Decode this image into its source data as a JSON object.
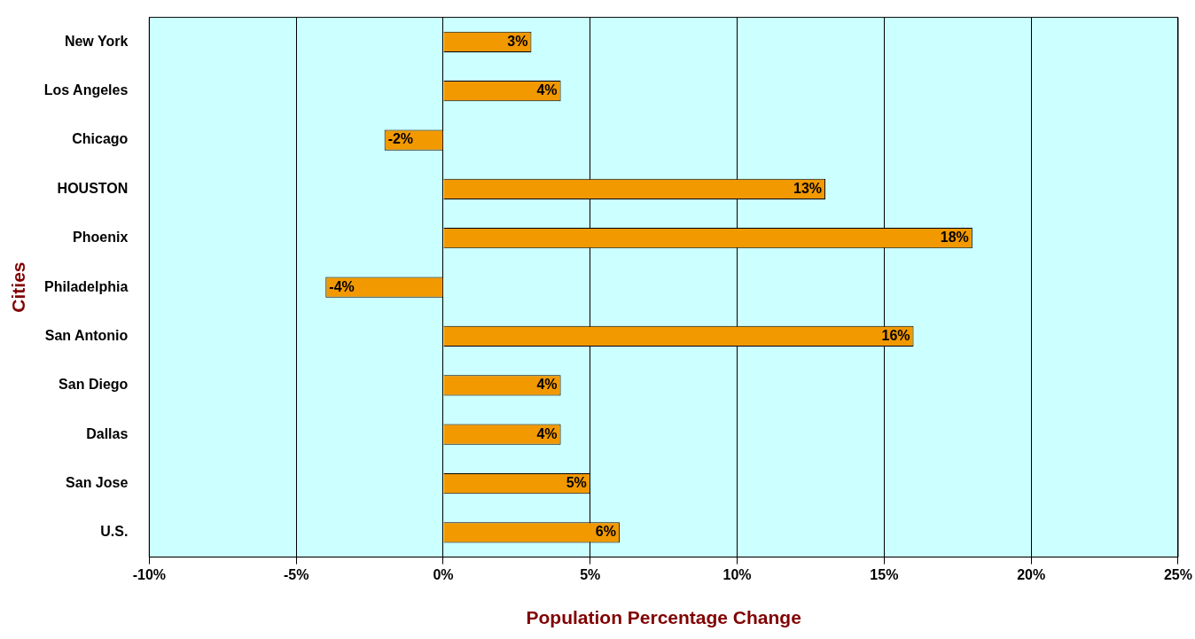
{
  "chart_data": {
    "type": "bar",
    "orientation": "horizontal",
    "xlabel": "Population Percentage Change",
    "ylabel": "Cities",
    "categories": [
      "New York",
      "Los Angeles",
      "Chicago",
      "HOUSTON",
      "Phoenix",
      "Philadelphia",
      "San Antonio",
      "San Diego",
      "Dallas",
      "San Jose",
      "U.S."
    ],
    "values": [
      3,
      4,
      -2,
      13,
      18,
      -4,
      16,
      4,
      4,
      5,
      6
    ],
    "value_labels": [
      "3%",
      "4%",
      "-2%",
      "13%",
      "18%",
      "-4%",
      "16%",
      "4%",
      "4%",
      "5%",
      "6%"
    ],
    "color": "#f29900",
    "xlim": [
      -10,
      25
    ],
    "xticks": [
      {
        "value": -10,
        "label": "-10%"
      },
      {
        "value": -5,
        "label": "-5%"
      },
      {
        "value": 0,
        "label": "0%"
      },
      {
        "value": 5,
        "label": "5%"
      },
      {
        "value": 10,
        "label": "10%"
      },
      {
        "value": 15,
        "label": "15%"
      },
      {
        "value": 20,
        "label": "20%"
      },
      {
        "value": 25,
        "label": "25%"
      }
    ],
    "grid": "x"
  }
}
